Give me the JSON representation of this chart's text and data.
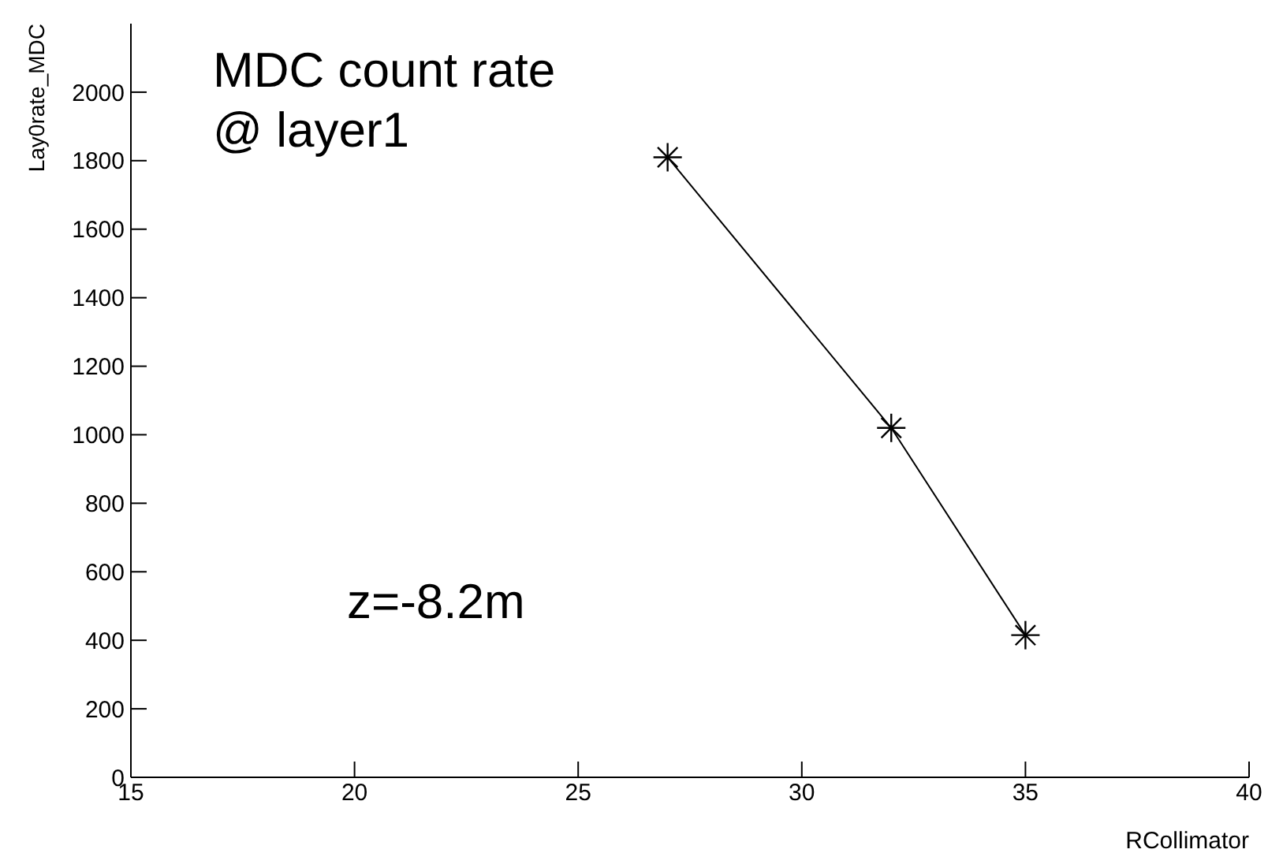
{
  "chart_data": {
    "type": "line",
    "xlabel": "RCollimator",
    "ylabel": "Lay0rate_MDC",
    "annotations": [
      "MDC count rate\n@ layer1",
      "z=-8.2m"
    ],
    "x": [
      27,
      32,
      35
    ],
    "series": [
      {
        "color": "#000000",
        "values": [
          1810,
          1020,
          415
        ]
      }
    ],
    "xlim": [
      15,
      40
    ],
    "xticks": [
      15,
      20,
      25,
      30,
      35,
      40
    ],
    "ylim": [
      0,
      2200
    ],
    "yticks": [
      0,
      200,
      400,
      600,
      800,
      1000,
      1200,
      1400,
      1600,
      1800,
      2000
    ],
    "grid": false,
    "legend": false,
    "marker": "cross",
    "line_style": "solid"
  }
}
